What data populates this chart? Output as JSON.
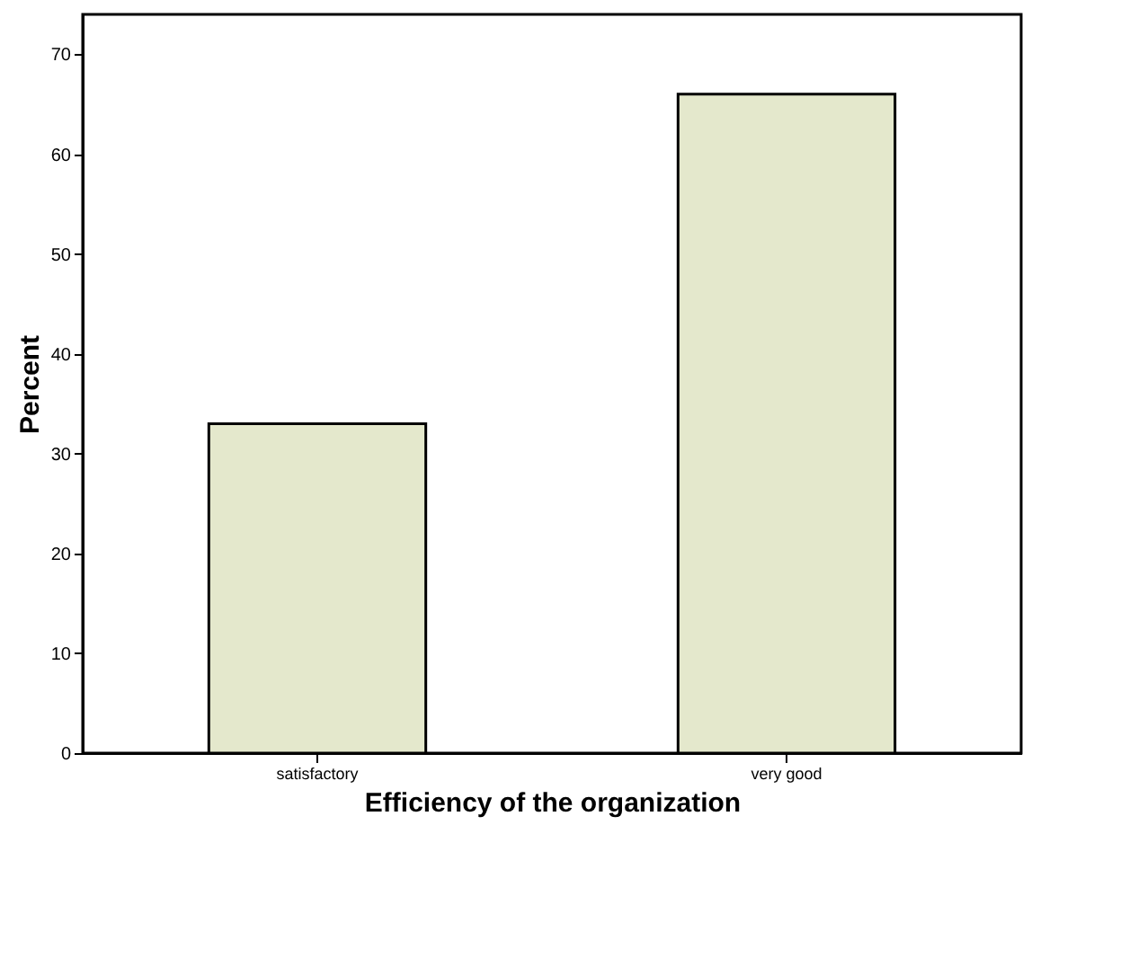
{
  "chart_data": {
    "type": "bar",
    "xlabel": "Efficiency of the organization",
    "ylabel": "Percent",
    "categories": [
      "satisfactory",
      "very good"
    ],
    "values": [
      33,
      66
    ],
    "color": "#e4e8cc",
    "ylim": [
      0,
      74
    ],
    "yticks": [
      0,
      10,
      20,
      30,
      40,
      50,
      60,
      70
    ],
    "grid": false
  }
}
